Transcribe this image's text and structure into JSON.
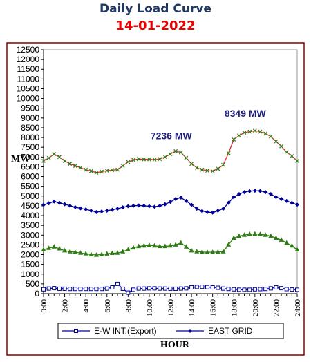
{
  "title": "Daily Load Curve",
  "subtitle": "14-01-2022",
  "chart_data": {
    "type": "line",
    "ylabel": "MW",
    "xlabel": "HOUR",
    "ylim": [
      0,
      12500
    ],
    "yticks": [
      0,
      500,
      1000,
      1500,
      2000,
      2500,
      3000,
      3500,
      4000,
      4500,
      5000,
      5500,
      6000,
      6500,
      7000,
      7500,
      8000,
      8500,
      9000,
      9500,
      10000,
      10500,
      11000,
      11500,
      12000,
      12500
    ],
    "xlim": [
      0,
      24
    ],
    "xticks": [
      "0:00",
      "2:00",
      "4:00",
      "6:00",
      "8:00",
      "10:00",
      "12:00",
      "14:00",
      "16:00",
      "18:00",
      "20:00",
      "22:00",
      "24:00"
    ],
    "grid": false,
    "legend_position": "bottom",
    "annotations": [
      {
        "text": "7236 MW",
        "x": 13,
        "y": 7236
      },
      {
        "text": "8349 MW",
        "x": 20,
        "y": 8349
      }
    ],
    "series": [
      {
        "name": "E-W INT.(Export)",
        "color": "#000099",
        "marker": "square-open",
        "legend": true,
        "x": [
          0,
          0.5,
          1,
          1.5,
          2,
          2.5,
          3,
          3.5,
          4,
          4.5,
          5,
          5.5,
          6,
          6.5,
          7,
          7.5,
          8,
          8.5,
          9,
          9.5,
          10,
          10.5,
          11,
          11.5,
          12,
          12.5,
          13,
          13.5,
          14,
          14.5,
          15,
          15.5,
          16,
          16.5,
          17,
          17.5,
          18,
          18.5,
          19,
          19.5,
          20,
          20.5,
          21,
          21.5,
          22,
          22.5,
          23,
          23.5,
          24
        ],
        "values": [
          220,
          260,
          280,
          250,
          250,
          240,
          240,
          240,
          240,
          240,
          240,
          240,
          260,
          320,
          500,
          250,
          50,
          200,
          260,
          260,
          270,
          270,
          260,
          260,
          250,
          250,
          260,
          270,
          320,
          340,
          350,
          330,
          320,
          300,
          260,
          240,
          220,
          200,
          200,
          200,
          220,
          230,
          240,
          270,
          320,
          280,
          230,
          210,
          200
        ]
      },
      {
        "name": "EAST GRID",
        "color": "#000099",
        "marker": "diamond",
        "legend": true,
        "x": [
          0,
          0.5,
          1,
          1.5,
          2,
          2.5,
          3,
          3.5,
          4,
          4.5,
          5,
          5.5,
          6,
          6.5,
          7,
          7.5,
          8,
          8.5,
          9,
          9.5,
          10,
          10.5,
          11,
          11.5,
          12,
          12.5,
          13,
          13.5,
          14,
          14.5,
          15,
          15.5,
          16,
          16.5,
          17,
          17.5,
          18,
          18.5,
          19,
          19.5,
          20,
          20.5,
          21,
          21.5,
          22,
          22.5,
          23,
          23.5,
          24
        ],
        "values": [
          4550,
          4630,
          4720,
          4650,
          4580,
          4500,
          4430,
          4370,
          4320,
          4250,
          4180,
          4210,
          4250,
          4300,
          4350,
          4420,
          4480,
          4500,
          4520,
          4500,
          4480,
          4450,
          4500,
          4580,
          4700,
          4850,
          4920,
          4750,
          4550,
          4350,
          4230,
          4180,
          4150,
          4250,
          4350,
          4650,
          4950,
          5100,
          5200,
          5250,
          5270,
          5260,
          5200,
          5100,
          4950,
          4850,
          4750,
          4650,
          4560
        ]
      },
      {
        "name": "",
        "color": "#2e7d14",
        "marker": "triangle",
        "legend": false,
        "x": [
          0,
          0.5,
          1,
          1.5,
          2,
          2.5,
          3,
          3.5,
          4,
          4.5,
          5,
          5.5,
          6,
          6.5,
          7,
          7.5,
          8,
          8.5,
          9,
          9.5,
          10,
          10.5,
          11,
          11.5,
          12,
          12.5,
          13,
          13.5,
          14,
          14.5,
          15,
          15.5,
          16,
          16.5,
          17,
          17.5,
          18,
          18.5,
          19,
          19.5,
          20,
          20.5,
          21,
          21.5,
          22,
          22.5,
          23,
          23.5,
          24
        ],
        "values": [
          2250,
          2330,
          2400,
          2300,
          2200,
          2150,
          2120,
          2080,
          2050,
          2000,
          1980,
          2010,
          2040,
          2070,
          2080,
          2150,
          2250,
          2350,
          2420,
          2450,
          2480,
          2450,
          2420,
          2420,
          2450,
          2500,
          2600,
          2400,
          2200,
          2150,
          2130,
          2120,
          2120,
          2130,
          2150,
          2500,
          2850,
          2950,
          3000,
          3050,
          3060,
          3040,
          3000,
          2950,
          2850,
          2750,
          2600,
          2450,
          2250
        ]
      },
      {
        "name": "",
        "color": "#d32f2f",
        "marker": "x",
        "legend": false,
        "x": [
          0,
          0.5,
          1,
          1.5,
          2,
          2.5,
          3,
          3.5,
          4,
          4.5,
          5,
          5.5,
          6,
          6.5,
          7,
          7.5,
          8,
          8.5,
          9,
          9.5,
          10,
          10.5,
          11,
          11.5,
          12,
          12.5,
          13,
          13.5,
          14,
          14.5,
          15,
          15.5,
          16,
          16.5,
          17,
          17.5,
          18,
          18.5,
          19,
          19.5,
          20,
          20.5,
          21,
          21.5,
          22,
          22.5,
          23,
          23.5,
          24
        ],
        "values": [
          6800,
          6950,
          7150,
          7000,
          6800,
          6650,
          6550,
          6450,
          6350,
          6280,
          6200,
          6250,
          6300,
          6330,
          6350,
          6550,
          6750,
          6850,
          6900,
          6880,
          6880,
          6870,
          6900,
          7000,
          7150,
          7300,
          7236,
          6950,
          6650,
          6450,
          6350,
          6300,
          6280,
          6400,
          6600,
          7200,
          7900,
          8100,
          8250,
          8300,
          8349,
          8300,
          8200,
          8050,
          7800,
          7550,
          7250,
          7050,
          6800
        ]
      }
    ]
  }
}
